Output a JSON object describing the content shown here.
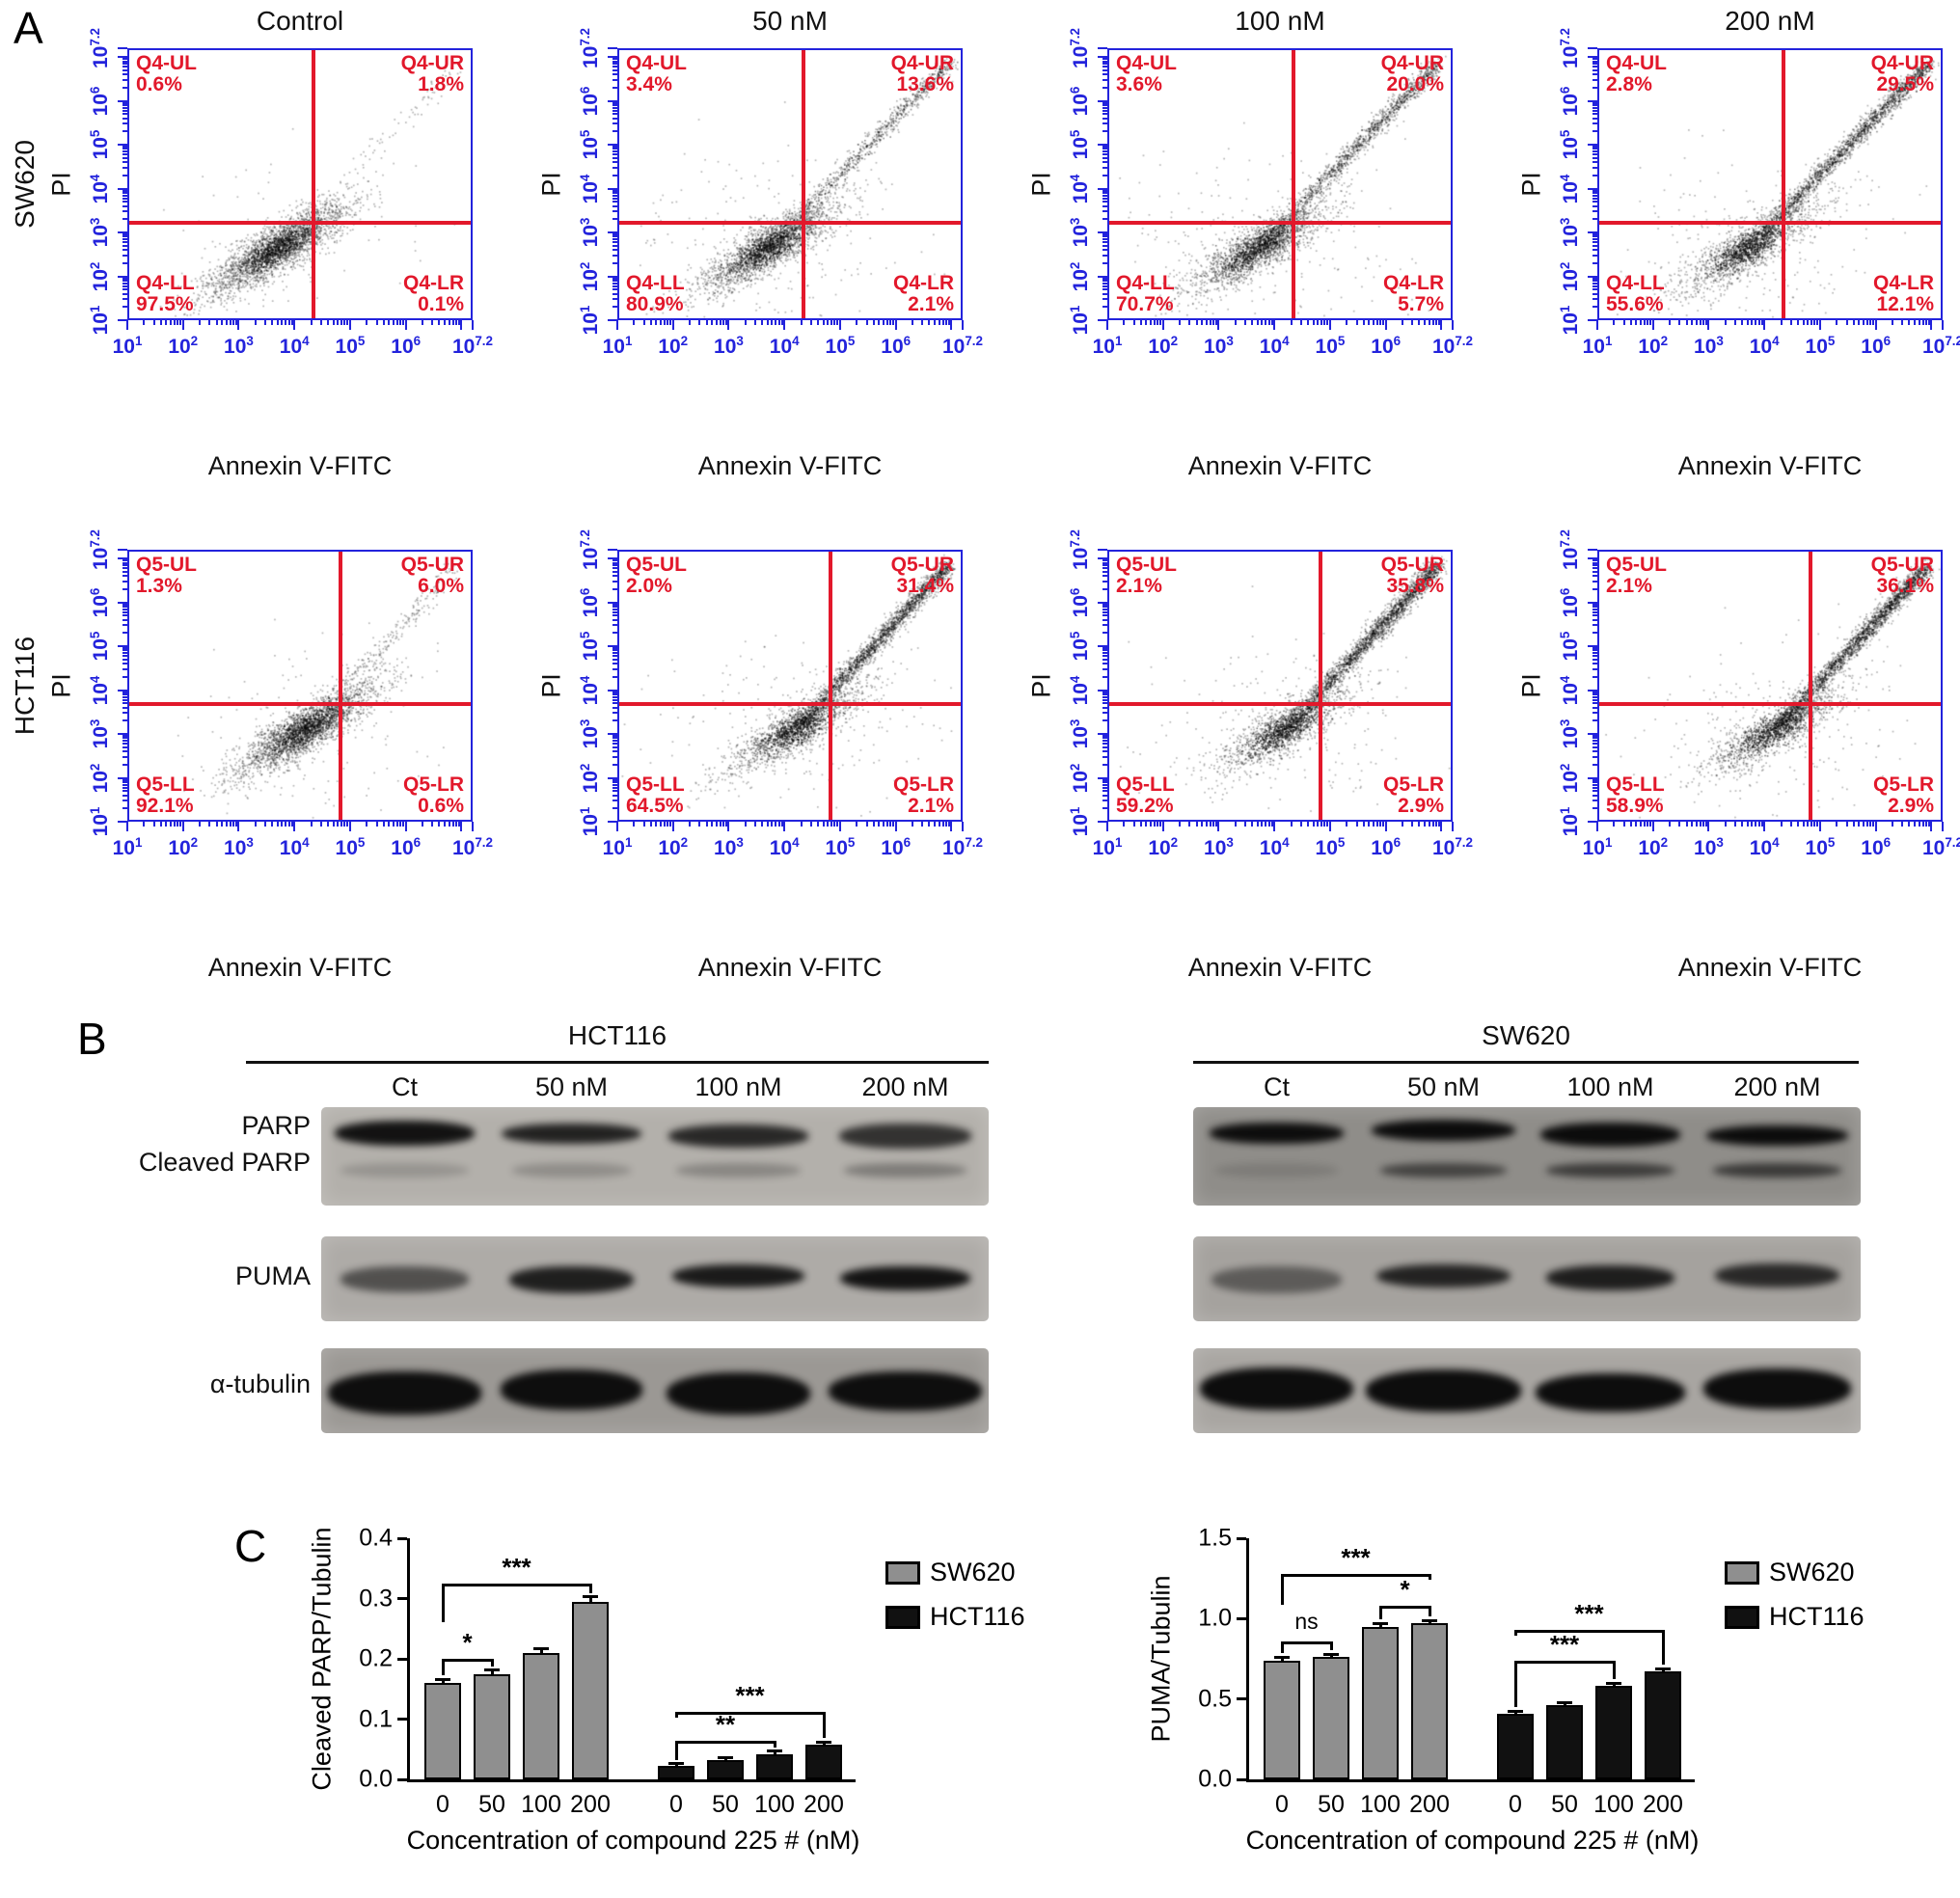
{
  "panel_labels": {
    "a": "A",
    "b": "B",
    "c": "C"
  },
  "colors": {
    "axis_blue": "#2323dc",
    "quad_red": "#e2182b",
    "bar_gray": "#8f8f8f",
    "bar_black": "#111111"
  },
  "flow_cytometry": {
    "column_titles": [
      "Control",
      "50 nM",
      "100 nM",
      "200 nM"
    ],
    "x_axis_label": "Annexin V-FITC",
    "y_axis_label": "PI",
    "x_tick_exponents": [
      "1",
      "2",
      "3",
      "4",
      "5",
      "6",
      "7.2"
    ],
    "y_tick_exponents": [
      "1",
      "2",
      "3",
      "4",
      "5",
      "6",
      "7.2"
    ],
    "rows": [
      {
        "cell_line": "SW620",
        "cross": {
          "x": 0.54,
          "y": 0.355
        },
        "plots": [
          {
            "quadrants": [
              {
                "name": "Q4-UL",
                "pct": "0.6%"
              },
              {
                "name": "Q4-UR",
                "pct": "1.8%"
              },
              {
                "name": "Q4-LL",
                "pct": "97.5%"
              },
              {
                "name": "Q4-LR",
                "pct": "0.1%"
              }
            ]
          },
          {
            "quadrants": [
              {
                "name": "Q4-UL",
                "pct": "3.4%"
              },
              {
                "name": "Q4-UR",
                "pct": "13.6%"
              },
              {
                "name": "Q4-LL",
                "pct": "80.9%"
              },
              {
                "name": "Q4-LR",
                "pct": "2.1%"
              }
            ]
          },
          {
            "quadrants": [
              {
                "name": "Q4-UL",
                "pct": "3.6%"
              },
              {
                "name": "Q4-UR",
                "pct": "20.0%"
              },
              {
                "name": "Q4-LL",
                "pct": "70.7%"
              },
              {
                "name": "Q4-LR",
                "pct": "5.7%"
              }
            ]
          },
          {
            "quadrants": [
              {
                "name": "Q4-UL",
                "pct": "2.8%"
              },
              {
                "name": "Q4-UR",
                "pct": "29.5%"
              },
              {
                "name": "Q4-LL",
                "pct": "55.6%"
              },
              {
                "name": "Q4-LR",
                "pct": "12.1%"
              }
            ]
          }
        ]
      },
      {
        "cell_line": "HCT116",
        "cross": {
          "x": 0.62,
          "y": 0.43
        },
        "plots": [
          {
            "quadrants": [
              {
                "name": "Q5-UL",
                "pct": "1.3%"
              },
              {
                "name": "Q5-UR",
                "pct": "6.0%"
              },
              {
                "name": "Q5-LL",
                "pct": "92.1%"
              },
              {
                "name": "Q5-LR",
                "pct": "0.6%"
              }
            ]
          },
          {
            "quadrants": [
              {
                "name": "Q5-UL",
                "pct": "2.0%"
              },
              {
                "name": "Q5-UR",
                "pct": "31.4%"
              },
              {
                "name": "Q5-LL",
                "pct": "64.5%"
              },
              {
                "name": "Q5-LR",
                "pct": "2.1%"
              }
            ]
          },
          {
            "quadrants": [
              {
                "name": "Q5-UL",
                "pct": "2.1%"
              },
              {
                "name": "Q5-UR",
                "pct": "35.8%"
              },
              {
                "name": "Q5-LL",
                "pct": "59.2%"
              },
              {
                "name": "Q5-LR",
                "pct": "2.9%"
              }
            ]
          },
          {
            "quadrants": [
              {
                "name": "Q5-UL",
                "pct": "2.1%"
              },
              {
                "name": "Q5-UR",
                "pct": "36.1%"
              },
              {
                "name": "Q5-LL",
                "pct": "58.9%"
              },
              {
                "name": "Q5-LR",
                "pct": "2.9%"
              }
            ]
          }
        ]
      }
    ]
  },
  "western_blots": {
    "row_labels": [
      "PARP",
      "Cleaved PARP",
      "PUMA",
      "α-tubulin"
    ],
    "groups": [
      {
        "cell_line": "HCT116",
        "lanes": [
          "Ct",
          "50 nM",
          "100 nM",
          "200 nM"
        ],
        "strips": [
          {
            "bg": "#b3b0ab",
            "main": [
              0.93,
              0.84,
              0.8,
              0.74
            ],
            "cleaved": [
              0.16,
              0.2,
              0.24,
              0.3
            ]
          },
          {
            "bg": "#aeaba7",
            "main": [
              0.55,
              0.85,
              0.88,
              0.92
            ]
          },
          {
            "bg": "#9b9894",
            "main": [
              0.95,
              0.95,
              0.95,
              0.95
            ]
          }
        ]
      },
      {
        "cell_line": "SW620",
        "lanes": [
          "Ct",
          "50 nM",
          "100 nM",
          "200 nM"
        ],
        "strips": [
          {
            "bg": "#8f8d89",
            "main": [
              0.95,
              0.96,
              0.96,
              0.96
            ],
            "cleaved": [
              0.12,
              0.55,
              0.6,
              0.62
            ]
          },
          {
            "bg": "#a5a29e",
            "main": [
              0.45,
              0.82,
              0.85,
              0.78
            ]
          },
          {
            "bg": "#a8a5a1",
            "main": [
              0.96,
              0.96,
              0.96,
              0.96
            ]
          }
        ]
      }
    ]
  },
  "chart_data": [
    {
      "type": "bar",
      "ylabel": "Cleaved PARP/Tubulin",
      "xlabel": "Concentration of compound 225 # (nM)",
      "ylim": [
        0,
        0.4
      ],
      "yticks": [
        "0.0",
        "0.1",
        "0.2",
        "0.3",
        "0.4"
      ],
      "categories": [
        "0",
        "50",
        "100",
        "200"
      ],
      "series": [
        {
          "name": "SW620",
          "color": "#8f8f8f",
          "values": [
            0.16,
            0.175,
            0.21,
            0.295
          ],
          "errors": [
            0.006,
            0.006,
            0.007,
            0.008
          ]
        },
        {
          "name": "HCT116",
          "color": "#111111",
          "values": [
            0.022,
            0.032,
            0.042,
            0.057
          ],
          "errors": [
            0.004,
            0.004,
            0.005,
            0.005
          ]
        }
      ],
      "significance": [
        {
          "series": 0,
          "from": 0,
          "to": 1,
          "label": "*",
          "height": 0.2
        },
        {
          "series": 0,
          "from": 0,
          "to": 3,
          "label": "***",
          "height": 0.325
        },
        {
          "series": 1,
          "from": 0,
          "to": 2,
          "label": "**",
          "height": 0.064
        },
        {
          "series": 1,
          "from": 0,
          "to": 3,
          "label": "***",
          "height": 0.112
        }
      ],
      "legend": [
        "SW620",
        "HCT116"
      ],
      "grid": "off",
      "legend_position": "right"
    },
    {
      "type": "bar",
      "ylabel": "PUMA/Tubulin",
      "xlabel": "Concentration of compound 225 # (nM)",
      "ylim": [
        0,
        1.5
      ],
      "yticks": [
        "0.0",
        "0.5",
        "1.0",
        "1.5"
      ],
      "categories": [
        "0",
        "50",
        "100",
        "200"
      ],
      "series": [
        {
          "name": "SW620",
          "color": "#8f8f8f",
          "values": [
            0.74,
            0.76,
            0.95,
            0.97
          ],
          "errors": [
            0.02,
            0.02,
            0.02,
            0.02
          ]
        },
        {
          "name": "HCT116",
          "color": "#111111",
          "values": [
            0.41,
            0.46,
            0.58,
            0.67
          ],
          "errors": [
            0.015,
            0.015,
            0.02,
            0.02
          ]
        }
      ],
      "significance": [
        {
          "series": 0,
          "from": 0,
          "to": 1,
          "label": "ns",
          "height": 0.86
        },
        {
          "series": 0,
          "from": 2,
          "to": 3,
          "label": "*",
          "height": 1.08
        },
        {
          "series": 0,
          "from": 0,
          "to": 3,
          "label": "***",
          "height": 1.28
        },
        {
          "series": 1,
          "from": 0,
          "to": 2,
          "label": "***",
          "height": 0.74
        },
        {
          "series": 1,
          "from": 0,
          "to": 3,
          "label": "***",
          "height": 0.93
        }
      ],
      "legend": [
        "SW620",
        "HCT116"
      ],
      "grid": "off",
      "legend_position": "right"
    }
  ]
}
